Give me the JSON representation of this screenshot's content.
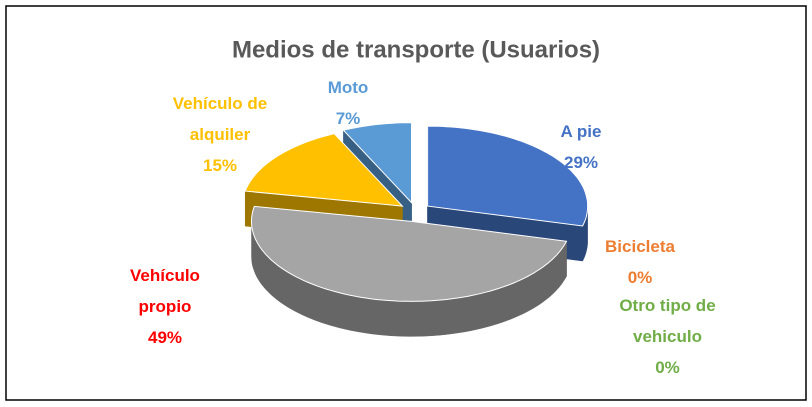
{
  "chart_data": {
    "type": "pie",
    "title": "Medios de transporte (Usuarios)",
    "categories": [
      "A pie",
      "Bicicleta",
      "Otro tipo de vehiculo",
      "Vehículo propio",
      "Vehículo de alquiler",
      "Moto"
    ],
    "values": [
      29,
      0,
      0,
      49,
      15,
      7
    ],
    "value_labels": [
      "29%",
      "0%",
      "0%",
      "49%",
      "15%",
      "7%"
    ],
    "colors": [
      "#4472c4",
      "#843c0c",
      "#70ad47",
      "#a5a5a5",
      "#ffc000",
      "#5b9bd5"
    ],
    "label_colors": [
      "#4472c4",
      "#ed7d31",
      "#70ad47",
      "#ff0000",
      "#ffc000",
      "#5b9bd5"
    ],
    "exploded": true,
    "3d": true
  }
}
